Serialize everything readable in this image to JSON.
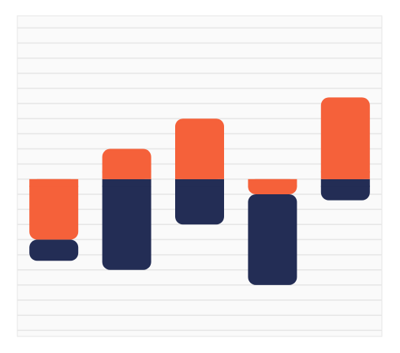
{
  "chart_data": {
    "type": "bar",
    "stacked": true,
    "categories": [
      "",
      "",
      "",
      "",
      ""
    ],
    "series": [
      {
        "values": [
          -2.0,
          1.0,
          2.0,
          -0.5,
          2.7
        ]
      },
      {
        "values": [
          -0.7,
          -3.0,
          -1.5,
          -3.0,
          -0.7
        ]
      }
    ],
    "ylim": [
      -5.2,
      5.4
    ],
    "grid": true,
    "legend": "none",
    "colors": {
      "series": [
        "#F5613A",
        "#232D55"
      ],
      "background": "#FAFAFA",
      "grid": "#E6E6E6",
      "frame": "#E6E6E6"
    }
  }
}
